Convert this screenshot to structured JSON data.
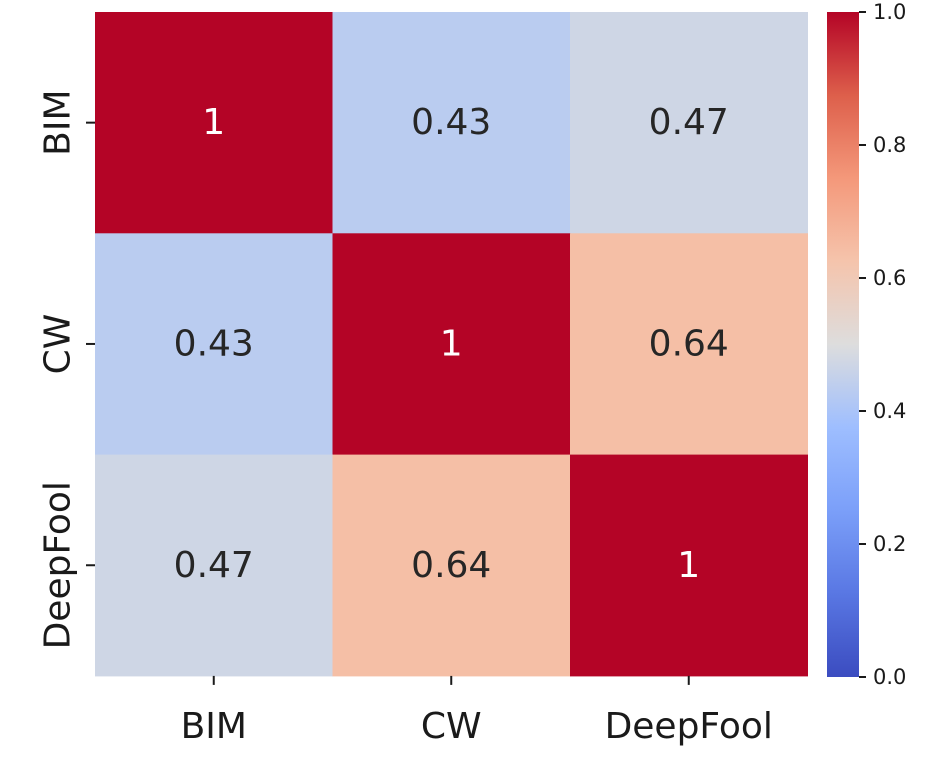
{
  "chart_data": {
    "type": "heatmap",
    "row_labels": [
      "BIM",
      "CW",
      "DeepFool"
    ],
    "col_labels": [
      "BIM",
      "CW",
      "DeepFool"
    ],
    "values": [
      [
        1,
        0.43,
        0.47
      ],
      [
        0.43,
        1,
        0.64
      ],
      [
        0.47,
        0.64,
        1
      ]
    ],
    "annotations": [
      [
        "1",
        "0.43",
        "0.47"
      ],
      [
        "0.43",
        "1",
        "0.64"
      ],
      [
        "0.47",
        "0.64",
        "1"
      ]
    ],
    "colormap": "coolwarm",
    "vmin": 0.0,
    "vmax": 1.0,
    "colorbar": {
      "ticks": [
        0.0,
        0.2,
        0.4,
        0.6,
        0.8,
        1.0
      ],
      "tick_labels": [
        "0.0",
        "0.2",
        "0.4",
        "0.6",
        "0.8",
        "1.0"
      ]
    },
    "colors": {
      "low": "#3b4cc0",
      "mid": "#dddddd",
      "high": "#b40426"
    },
    "title": "",
    "xlabel": "",
    "ylabel": ""
  }
}
